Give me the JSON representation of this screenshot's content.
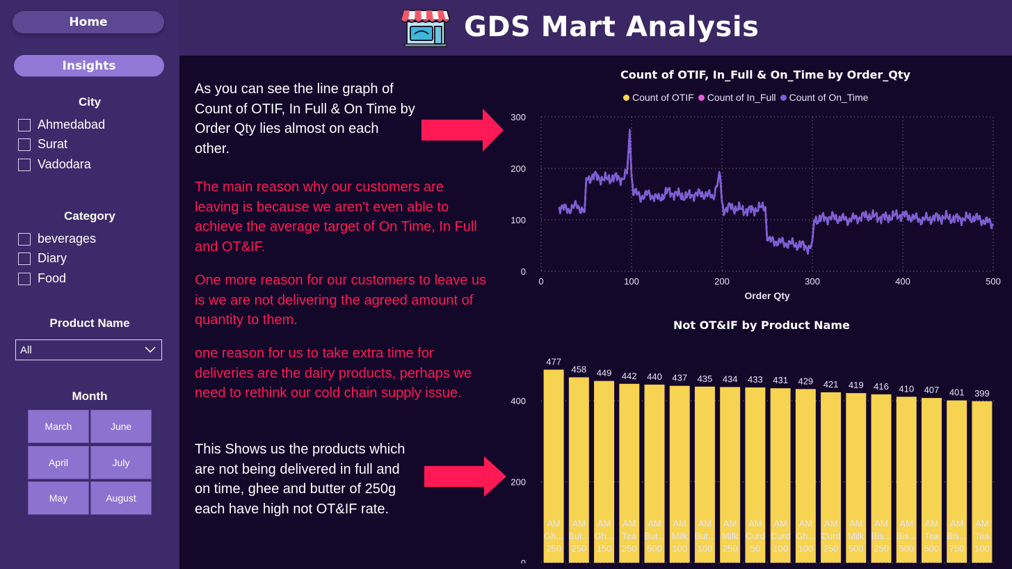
{
  "header": {
    "title": "GDS Mart Analysis",
    "icon": "store-icon"
  },
  "nav": {
    "home_label": "Home",
    "insights_label": "Insights"
  },
  "slicers": {
    "city": {
      "title": "City",
      "options": [
        "Ahmedabad",
        "Surat",
        "Vadodara"
      ]
    },
    "category": {
      "title": "Category",
      "options": [
        "beverages",
        "Diary",
        "Food"
      ]
    },
    "product": {
      "title": "Product Name",
      "selected": "All"
    },
    "month": {
      "title": "Month",
      "options": [
        "March",
        "June",
        "April",
        "July",
        "May",
        "August"
      ]
    }
  },
  "text": {
    "p1": "As you can see the line graph of Count of OTIF, In Full & On Time by Order Qty lies almost on each other.",
    "p2": "The main reason why our customers are leaving is because we aren't even able to achieve the average target of On Time, In Full and OT&IF.",
    "p3": "One more reason for our customers to leave us is we are not delivering the agreed amount of quantity to them.",
    "p4": "one reason for us to take extra time for deliveries are the dairy products, perhaps we need to rethink our cold chain supply issue.",
    "p5": "This Shows us the products which are not being delivered in full and on time, ghee and butter of 250g each have high not OT&IF rate."
  },
  "colors": {
    "accent_red": "#ff1a55",
    "line_purple": "#7b5ed9",
    "bar_yellow": "#f6d350",
    "otif": "#f6d350",
    "in_full": "#e85ae0",
    "on_time": "#7b5ed9"
  },
  "chart_data": [
    {
      "type": "line",
      "title": "Count of OTIF, In_Full & On_Time by Order_Qty",
      "xlabel": "Order Qty",
      "ylabel": "",
      "xlim": [
        0,
        500
      ],
      "ylim": [
        0,
        300
      ],
      "x_ticks": [
        0,
        100,
        200,
        300,
        400,
        500
      ],
      "y_ticks": [
        0,
        100,
        200,
        300
      ],
      "grid": true,
      "legend": "top-center",
      "x": [
        20,
        30,
        40,
        48,
        50,
        60,
        70,
        80,
        90,
        95,
        98,
        100,
        102,
        110,
        120,
        130,
        140,
        150,
        160,
        170,
        180,
        190,
        198,
        200,
        202,
        210,
        220,
        230,
        240,
        248,
        250,
        252,
        260,
        270,
        280,
        290,
        298,
        300,
        302,
        320,
        340,
        360,
        380,
        400,
        420,
        440,
        460,
        480,
        500
      ],
      "series": [
        {
          "name": "Count of OTIF",
          "values": [
            125,
            120,
            128,
            115,
            180,
            185,
            178,
            182,
            180,
            190,
            270,
            185,
            155,
            145,
            150,
            140,
            155,
            150,
            145,
            150,
            150,
            145,
            185,
            135,
            120,
            125,
            120,
            118,
            122,
            125,
            60,
            60,
            58,
            55,
            52,
            50,
            45,
            60,
            100,
            105,
            100,
            108,
            104,
            110,
            100,
            105,
            102,
            104,
            92
          ]
        },
        {
          "name": "Count of In_Full",
          "values": [
            125,
            120,
            128,
            115,
            180,
            185,
            178,
            182,
            180,
            190,
            272,
            185,
            155,
            145,
            150,
            140,
            155,
            150,
            145,
            150,
            150,
            145,
            186,
            135,
            120,
            125,
            120,
            118,
            122,
            125,
            60,
            60,
            58,
            55,
            52,
            50,
            45,
            60,
            100,
            105,
            100,
            108,
            104,
            110,
            100,
            105,
            102,
            104,
            92
          ]
        },
        {
          "name": "Count of On_Time",
          "values": [
            125,
            120,
            128,
            115,
            180,
            185,
            178,
            182,
            180,
            190,
            275,
            185,
            155,
            145,
            150,
            140,
            155,
            150,
            145,
            150,
            150,
            145,
            187,
            135,
            120,
            125,
            120,
            118,
            122,
            125,
            60,
            60,
            58,
            55,
            52,
            50,
            45,
            60,
            100,
            105,
            100,
            108,
            104,
            110,
            100,
            105,
            102,
            104,
            92
          ]
        }
      ]
    },
    {
      "type": "bar",
      "title": "Not OT&IF by Product Name",
      "xlabel": "",
      "ylabel": "",
      "ylim": [
        0,
        500
      ],
      "y_ticks": [
        0,
        200,
        400
      ],
      "grid": true,
      "categories": [
        [
          "AM",
          "Gh...",
          "250"
        ],
        [
          "AM",
          "But...",
          "250"
        ],
        [
          "AM",
          "Gh...",
          "150"
        ],
        [
          "AM",
          "Tea",
          "250"
        ],
        [
          "AM",
          "But...",
          "500"
        ],
        [
          "AM",
          "Milk",
          "100"
        ],
        [
          "AM",
          "But...",
          "100"
        ],
        [
          "AM",
          "Milk",
          "250"
        ],
        [
          "AM",
          "Curd",
          "50"
        ],
        [
          "AM",
          "Curd",
          "100"
        ],
        [
          "AM",
          "Gh...",
          "100"
        ],
        [
          "AM",
          "Curd",
          "250"
        ],
        [
          "AM",
          "Milk",
          "500"
        ],
        [
          "AM",
          "Bis...",
          "250"
        ],
        [
          "AM",
          "Bis...",
          "500"
        ],
        [
          "AM",
          "Tea",
          "500"
        ],
        [
          "AM",
          "Bis...",
          "750"
        ],
        [
          "AM",
          "Tea",
          "100"
        ]
      ],
      "values": [
        477,
        458,
        449,
        442,
        440,
        437,
        435,
        434,
        433,
        431,
        429,
        421,
        419,
        416,
        410,
        407,
        401,
        399
      ]
    }
  ]
}
